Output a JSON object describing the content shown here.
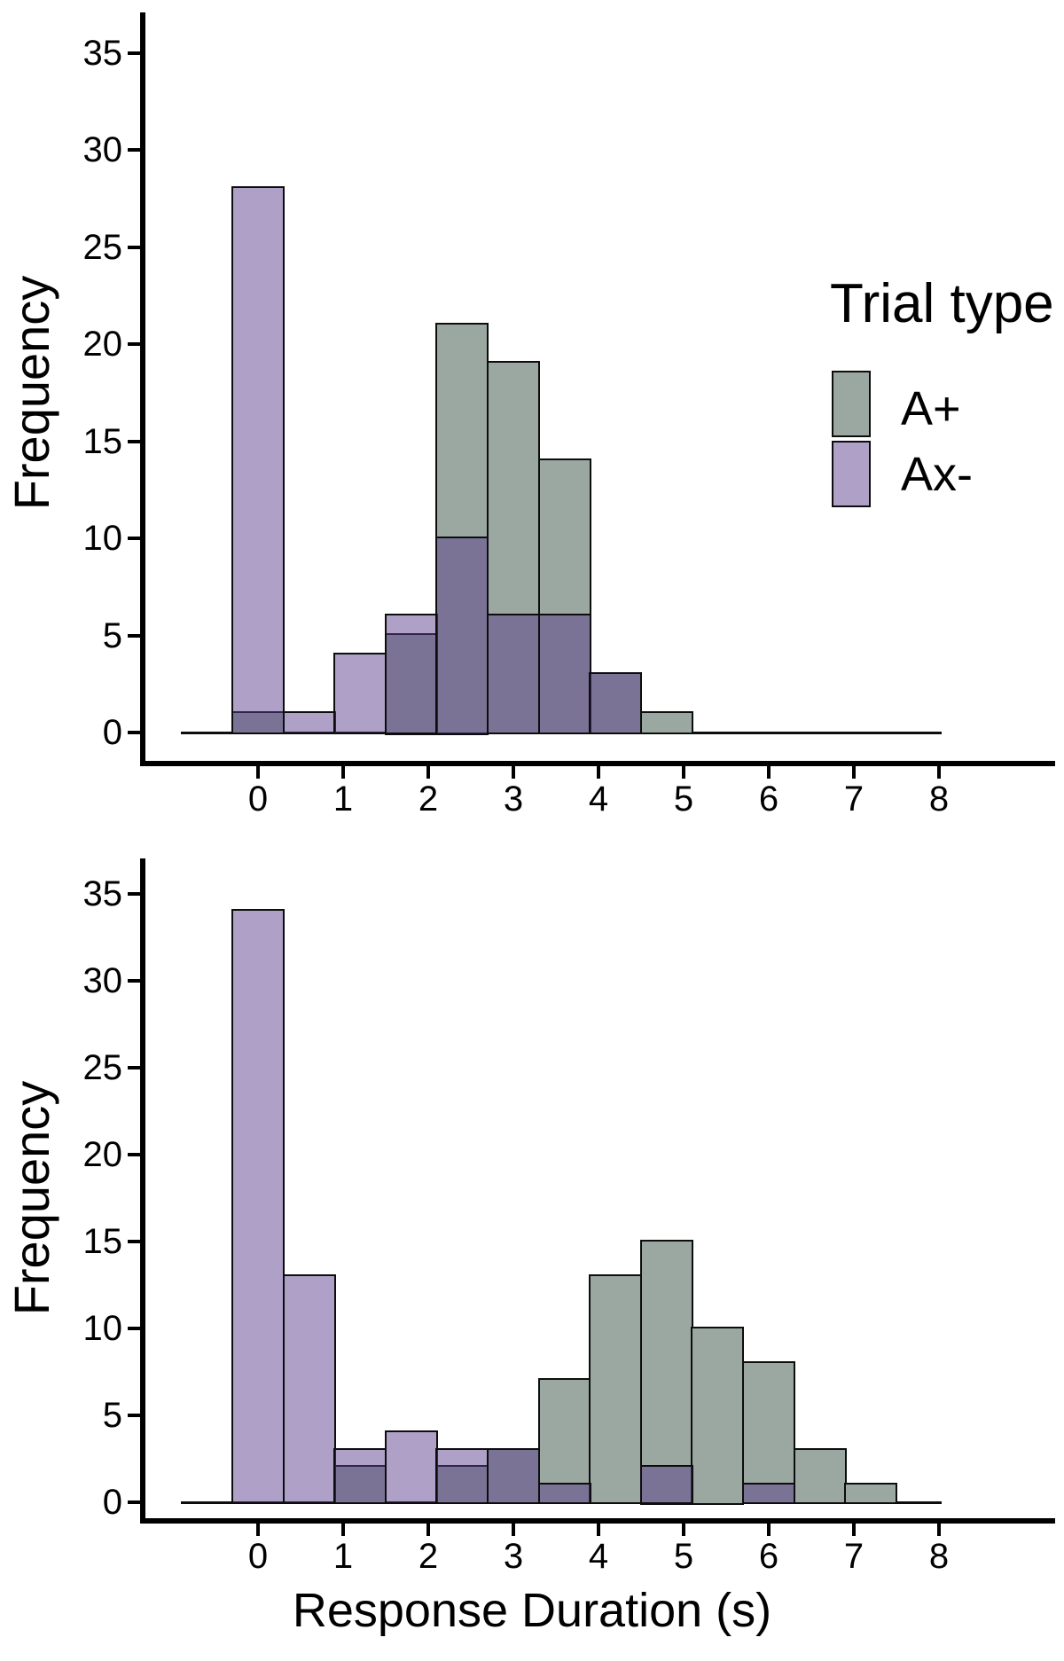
{
  "figure": {
    "background": "#ffffff",
    "colors": {
      "a_plus_fill": "#9aa8a1",
      "ax_minus_fill_solid": "#aea0c6",
      "ax_minus_fill_translucent": "rgba(90,61,139,0.49)",
      "overlap_observed": "#7a749d",
      "bar_border": "#0d0d0d",
      "axis": "#000000",
      "text": "#000000"
    },
    "legend": {
      "title": "Trial type",
      "position": "upper-right-of-top-panel",
      "items": [
        {
          "label": "A+",
          "color": "#9aa8a1"
        },
        {
          "label": "Ax-",
          "color": "#aea0c6"
        }
      ]
    }
  },
  "chart_data": [
    {
      "type": "bar",
      "subtype": "overlaid-histogram",
      "panel": "top",
      "title": "",
      "xlabel": "",
      "ylabel": "Frequency",
      "x_ticks": [
        "0",
        "1",
        "2",
        "3",
        "4",
        "5",
        "6",
        "7",
        "8"
      ],
      "y_ticks": [
        "0",
        "5",
        "10",
        "15",
        "20",
        "25",
        "30",
        "35"
      ],
      "xlim": [
        -1.3,
        9.3
      ],
      "ylim": [
        0,
        37
      ],
      "grid": false,
      "bin_width": 0.6,
      "bin_centers": [
        0,
        0.6,
        1.2,
        1.8,
        2.4,
        3.0,
        3.6,
        4.2,
        4.8
      ],
      "series": [
        {
          "name": "A+",
          "values": [
            1,
            0,
            0,
            5,
            21,
            19,
            14,
            3,
            1
          ]
        },
        {
          "name": "Ax-",
          "values": [
            28,
            1,
            4,
            6,
            10,
            6,
            6,
            3,
            0
          ]
        }
      ],
      "legend_visible": true
    },
    {
      "type": "bar",
      "subtype": "overlaid-histogram",
      "panel": "bottom",
      "title": "",
      "xlabel": "Response Duration (s)",
      "ylabel": "Frequency",
      "x_ticks": [
        "0",
        "1",
        "2",
        "3",
        "4",
        "5",
        "6",
        "7",
        "8"
      ],
      "y_ticks": [
        "0",
        "5",
        "10",
        "15",
        "20",
        "25",
        "30",
        "35"
      ],
      "xlim": [
        -1.3,
        9.3
      ],
      "ylim": [
        0,
        37
      ],
      "grid": false,
      "bin_width": 0.6,
      "bin_centers": [
        0,
        0.6,
        1.2,
        1.8,
        2.4,
        3.0,
        3.6,
        4.2,
        4.8,
        5.4,
        6.0,
        6.6,
        7.2
      ],
      "series": [
        {
          "name": "A+",
          "values": [
            0,
            0,
            2,
            0,
            2,
            3,
            7,
            13,
            15,
            10,
            8,
            3,
            1
          ]
        },
        {
          "name": "Ax-",
          "values": [
            34,
            13,
            3,
            4,
            3,
            3,
            1,
            0,
            2,
            0,
            1,
            0,
            0
          ]
        }
      ],
      "legend_visible": false
    }
  ]
}
